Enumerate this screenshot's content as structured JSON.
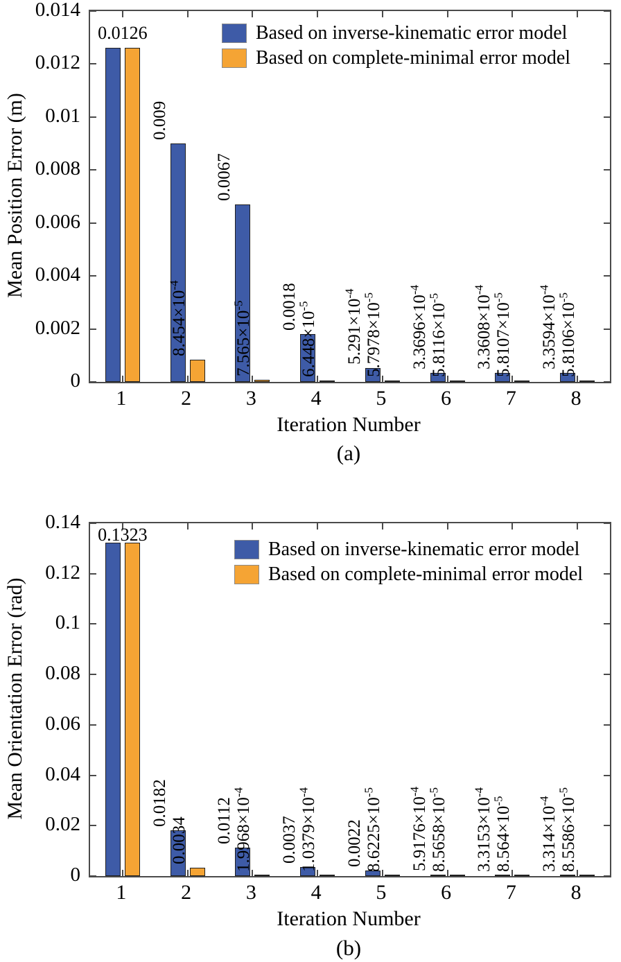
{
  "page": {
    "background": "#ffffff"
  },
  "colors": {
    "series1": "#3e5ba7",
    "series2": "#f5a434",
    "bar_edge": "#1f1f1f",
    "axis": "#4a4a4a",
    "text": "#000000"
  },
  "chart_data": [
    {
      "type": "bar",
      "caption": "(a)",
      "title": "",
      "xlabel": "Iteration Number",
      "ylabel": "Mean Position Error (m)",
      "categories": [
        "1",
        "2",
        "3",
        "4",
        "5",
        "6",
        "7",
        "8"
      ],
      "ylim": [
        0,
        0.014
      ],
      "yticks": [
        0,
        0.002,
        0.004,
        0.006,
        0.008,
        0.01,
        0.012,
        0.014
      ],
      "ytick_labels": [
        "0",
        "0.002",
        "0.004",
        "0.006",
        "0.008",
        "0.01",
        "0.012",
        "0.014"
      ],
      "grid": false,
      "legend_position": "upper right",
      "group_labels": [
        "0.0126",
        "",
        "",
        "",
        "",
        "",
        "",
        ""
      ],
      "series": [
        {
          "name": "Based on inverse-kinematic error model",
          "color": "#3e5ba7",
          "values": [
            0.0126,
            0.009,
            0.0067,
            0.0018,
            0.0005291,
            0.00033696,
            0.00033608,
            0.00033594
          ],
          "labels": [
            "",
            "0.009",
            "0.0067",
            "0.0018",
            "5.291×10^-4",
            "3.3696×10^-4",
            "3.3608×10^-4",
            "3.3594×10^-4"
          ]
        },
        {
          "name": "Based on complete-minimal error model",
          "color": "#f5a434",
          "values": [
            0.0126,
            0.0008454,
            7.565e-05,
            6.448e-05,
            5.7978e-05,
            5.8116e-05,
            5.8107e-05,
            5.8106e-05
          ],
          "labels": [
            "",
            "8.454×10^-4",
            "7.565×10^-5",
            "6.448×10^-5",
            "5.7978×10^-5",
            "5.8116×10^-5",
            "5.8107×10^-5",
            "5.8106×10^-5"
          ]
        }
      ]
    },
    {
      "type": "bar",
      "caption": "(b)",
      "title": "",
      "xlabel": "Iteration Number",
      "ylabel": "Mean Orientation Error (rad)",
      "categories": [
        "1",
        "2",
        "3",
        "4",
        "5",
        "6",
        "7",
        "8"
      ],
      "ylim": [
        0,
        0.14
      ],
      "yticks": [
        0,
        0.02,
        0.04,
        0.06,
        0.08,
        0.1,
        0.12,
        0.14
      ],
      "ytick_labels": [
        "0",
        "0.02",
        "0.04",
        "0.06",
        "0.08",
        "0.1",
        "0.12",
        "0.14"
      ],
      "grid": false,
      "legend_position": "upper right",
      "group_labels": [
        "0.1323",
        "",
        "",
        "",
        "",
        "",
        "",
        ""
      ],
      "series": [
        {
          "name": "Based on inverse-kinematic error model",
          "color": "#3e5ba7",
          "values": [
            0.1323,
            0.0182,
            0.0112,
            0.0037,
            0.0022,
            0.00059176,
            0.00033153,
            0.0003314
          ],
          "labels": [
            "",
            "0.0182",
            "0.0112",
            "0.0037",
            "0.0022",
            "5.9176×10^-4",
            "3.3153×10^-4",
            "3.314×10^-4"
          ]
        },
        {
          "name": "Based on complete-minimal error model",
          "color": "#f5a434",
          "values": [
            0.1323,
            0.0034,
            0.00019968,
            0.00010379,
            8.6225e-05,
            8.5658e-05,
            8.564e-05,
            8.5586e-05
          ],
          "labels": [
            "",
            "0.0034",
            "1.9968×10^-4",
            "1.0379×10^-4",
            "8.6225×10^-5",
            "8.5658×10^-5",
            "8.564×10^-5",
            "8.5586×10^-5"
          ]
        }
      ]
    }
  ]
}
